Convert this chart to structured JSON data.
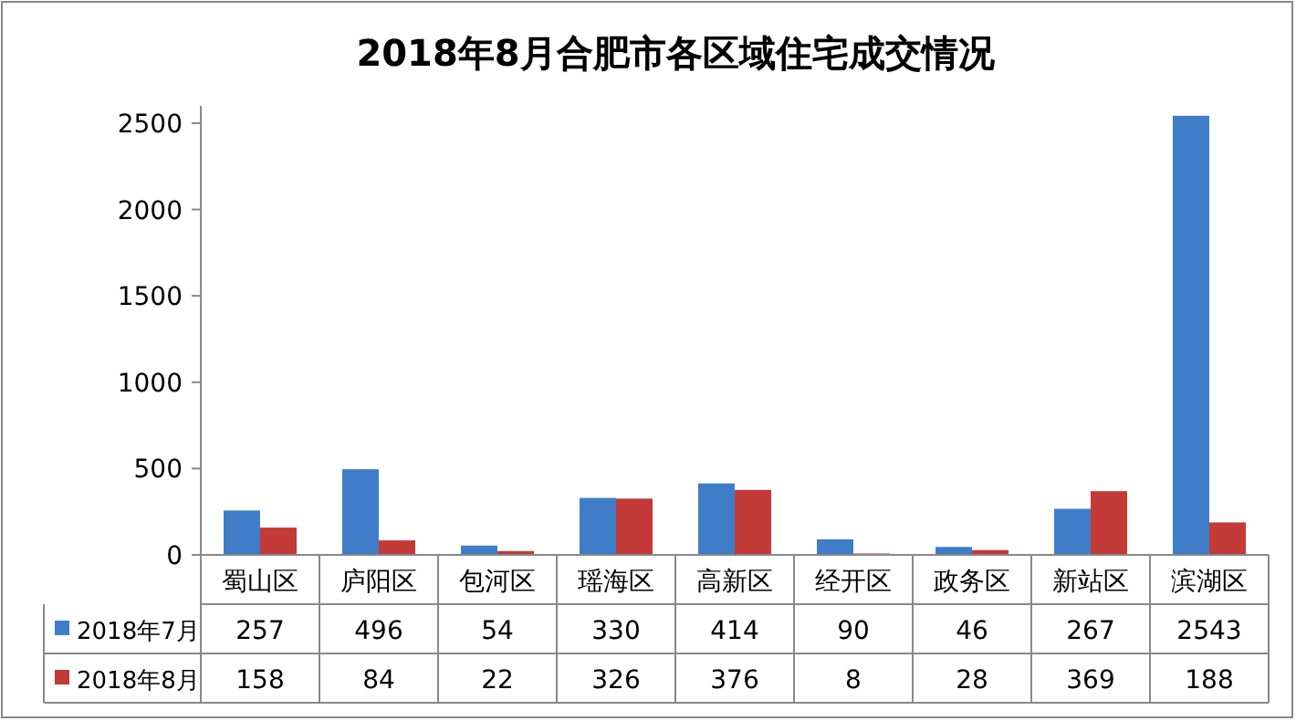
{
  "chart_data": {
    "type": "bar",
    "title": "2018年8月合肥市各区域住宅成交情况",
    "categories": [
      "蜀山区",
      "庐阳区",
      "包河区",
      "瑶海区",
      "高新区",
      "经开区",
      "政务区",
      "新站区",
      "滨湖区"
    ],
    "series": [
      {
        "name": "2018年7月",
        "color": "#3f7dc8",
        "values": [
          257,
          496,
          54,
          330,
          414,
          90,
          46,
          267,
          2543
        ]
      },
      {
        "name": "2018年8月",
        "color": "#c33a37",
        "values": [
          158,
          84,
          22,
          326,
          376,
          8,
          28,
          369,
          188
        ]
      }
    ],
    "ylim": [
      0,
      2600
    ],
    "yticks": [
      0,
      500,
      1000,
      1500,
      2000,
      2500
    ],
    "grid": false,
    "legend": "bottom",
    "data_labels": true
  }
}
